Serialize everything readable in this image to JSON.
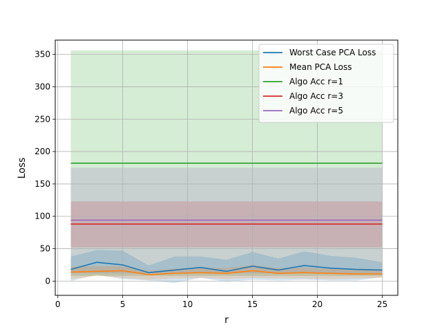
{
  "chart_data": {
    "type": "line",
    "xlabel": "r",
    "ylabel": "Loss",
    "xlim": [
      -0.2,
      26.2
    ],
    "ylim": [
      -22,
      372
    ],
    "grid": true,
    "legend_position": "top-right",
    "xticks": [
      0,
      5,
      10,
      15,
      20,
      25
    ],
    "yticks": [
      0,
      50,
      100,
      150,
      200,
      250,
      300,
      350
    ],
    "bands": [
      {
        "name": "Algo Acc r=1 band",
        "color": "#2ca02c",
        "x_range": [
          1,
          25
        ],
        "lower": 8,
        "upper": 356
      },
      {
        "name": "Algo Acc r=3 band",
        "color": "#d62728",
        "x_range": [
          1,
          25
        ],
        "lower": 52,
        "upper": 123
      },
      {
        "name": "Algo Acc r=5 band",
        "color": "#9467bd",
        "x_range": [
          1,
          25
        ],
        "lower": 12,
        "upper": 175
      }
    ],
    "series": [
      {
        "name": "Worst Case PCA Loss",
        "color": "#1f77b4",
        "x": [
          1,
          3,
          5,
          7,
          9,
          11,
          13,
          15,
          17,
          19,
          21,
          23,
          25
        ],
        "values": [
          18,
          29,
          25,
          13,
          17,
          21,
          15,
          23,
          17,
          24,
          20,
          18,
          17
        ],
        "band_lower": [
          0,
          10,
          3,
          1,
          -3,
          5,
          -1,
          2,
          1,
          2,
          1,
          1,
          6
        ],
        "band_upper": [
          38,
          48,
          47,
          24,
          38,
          38,
          33,
          45,
          35,
          46,
          39,
          36,
          29
        ]
      },
      {
        "name": "Mean PCA Loss",
        "color": "#ff7f0e",
        "x": [
          1,
          3,
          5,
          7,
          9,
          11,
          13,
          15,
          17,
          19,
          21,
          23,
          25
        ],
        "values": [
          14,
          15,
          16,
          10,
          12,
          13,
          12,
          16,
          12,
          13,
          12,
          11,
          11
        ],
        "band_lower": [
          3,
          8,
          5,
          2,
          4,
          5,
          3,
          5,
          4,
          4,
          3,
          4,
          5
        ],
        "band_upper": [
          22,
          23,
          23,
          16,
          19,
          21,
          20,
          25,
          20,
          21,
          19,
          18,
          17
        ]
      },
      {
        "name": "Algo Acc r=1",
        "color": "#2ca02c",
        "x": [
          1,
          25
        ],
        "values": [
          182,
          182
        ]
      },
      {
        "name": "Algo Acc r=3",
        "color": "#d62728",
        "x": [
          1,
          25
        ],
        "values": [
          88,
          88
        ]
      },
      {
        "name": "Algo Acc r=5",
        "color": "#9467bd",
        "x": [
          1,
          25
        ],
        "values": [
          94,
          94
        ]
      }
    ]
  }
}
